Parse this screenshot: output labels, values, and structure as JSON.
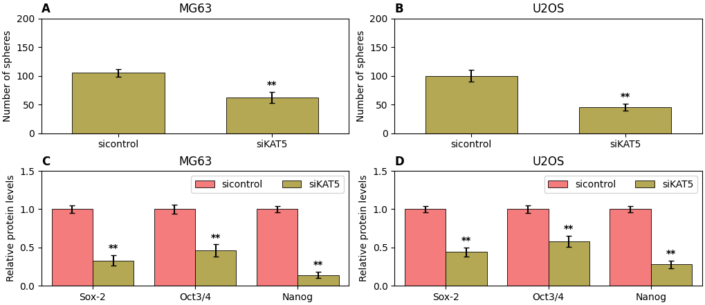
{
  "chart_data": [
    {
      "type": "bar",
      "title": "A",
      "subtitle": "MG63",
      "categories": [
        "sicontrol",
        "siKAT5"
      ],
      "values": [
        105,
        62
      ],
      "errors": [
        7,
        10
      ],
      "color": "#b5a855",
      "ylabel": "Number of spheres",
      "ylim": [
        0,
        200
      ],
      "yticks": [
        0,
        50,
        100,
        150,
        200
      ],
      "annotations": [
        {
          "category": "siKAT5",
          "text": "**"
        }
      ]
    },
    {
      "type": "bar",
      "title": "B",
      "subtitle": "U2OS",
      "categories": [
        "sicontrol",
        "siKAT5"
      ],
      "values": [
        100,
        45
      ],
      "errors": [
        10,
        6
      ],
      "color": "#b5a855",
      "ylabel": "Number of spheres",
      "ylim": [
        0,
        200
      ],
      "yticks": [
        0,
        50,
        100,
        150,
        200
      ],
      "annotations": [
        {
          "category": "siKAT5",
          "text": "**"
        }
      ]
    },
    {
      "type": "bar",
      "title": "C",
      "subtitle": "MG63",
      "categories": [
        "Sox-2",
        "Oct3/4",
        "Nanog"
      ],
      "series": [
        {
          "name": "sicontrol",
          "color": "#f47c7c",
          "values": [
            1.0,
            1.0,
            1.0
          ],
          "errors": [
            0.05,
            0.06,
            0.04
          ]
        },
        {
          "name": "siKAT5",
          "color": "#b5a855",
          "values": [
            0.33,
            0.46,
            0.14
          ],
          "errors": [
            0.07,
            0.08,
            0.04
          ]
        }
      ],
      "ylabel": "Relative protein levels",
      "ylim": [
        0,
        1.5
      ],
      "yticks": [
        {
          "value": 0,
          "label": "0.0"
        },
        0.5,
        {
          "value": 1,
          "label": "1.0"
        },
        1.5
      ],
      "legend": "upper right",
      "annotations": [
        {
          "category": "Sox-2",
          "series": "siKAT5",
          "text": "**"
        },
        {
          "category": "Oct3/4",
          "series": "siKAT5",
          "text": "**"
        },
        {
          "category": "Nanog",
          "series": "siKAT5",
          "text": "**"
        }
      ]
    },
    {
      "type": "bar",
      "title": "D",
      "subtitle": "U2OS",
      "categories": [
        "Sox-2",
        "Oct3/4",
        "Nanog"
      ],
      "series": [
        {
          "name": "sicontrol",
          "color": "#f47c7c",
          "values": [
            1.0,
            1.0,
            1.0
          ],
          "errors": [
            0.04,
            0.05,
            0.04
          ]
        },
        {
          "name": "siKAT5",
          "color": "#b5a855",
          "values": [
            0.44,
            0.58,
            0.28
          ],
          "errors": [
            0.06,
            0.07,
            0.05
          ]
        }
      ],
      "ylabel": "Relative protein levels",
      "ylim": [
        0,
        1.5
      ],
      "yticks": [
        {
          "value": 0,
          "label": "0.0"
        },
        0.5,
        {
          "value": 1,
          "label": "1.0"
        },
        1.5
      ],
      "legend": "upper right",
      "annotations": [
        {
          "category": "Sox-2",
          "series": "siKAT5",
          "text": "**"
        },
        {
          "category": "Oct3/4",
          "series": "siKAT5",
          "text": "**"
        },
        {
          "category": "Nanog",
          "series": "siKAT5",
          "text": "**"
        }
      ]
    }
  ]
}
